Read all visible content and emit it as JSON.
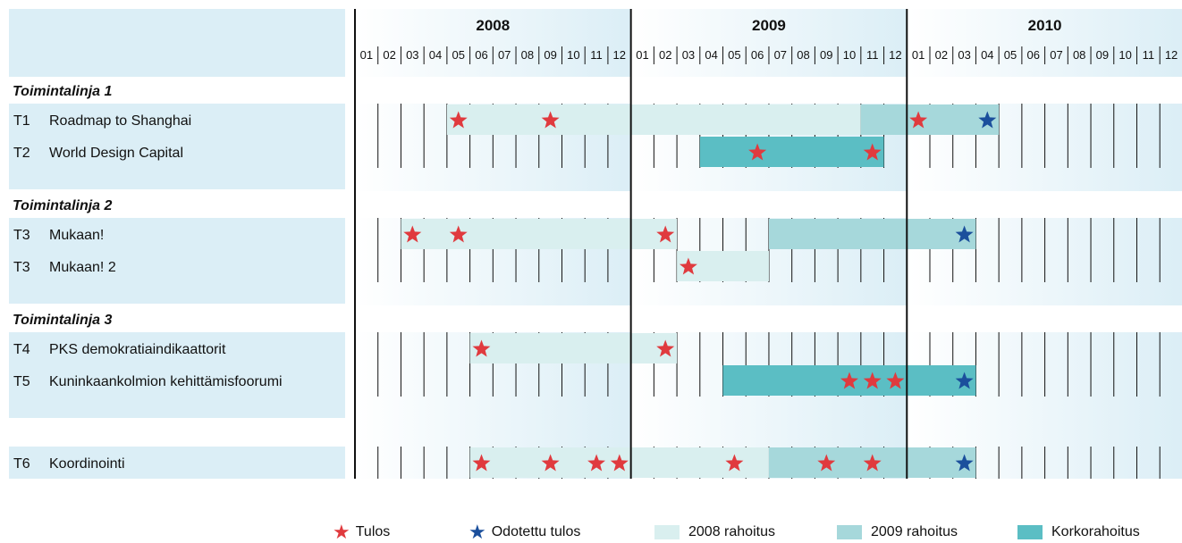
{
  "chart_data": {
    "type": "gantt",
    "years": [
      "2008",
      "2009",
      "2010"
    ],
    "months": [
      "01",
      "02",
      "03",
      "04",
      "05",
      "06",
      "07",
      "08",
      "09",
      "10",
      "11",
      "12"
    ],
    "colors": {
      "funding_2008": "#d9efef",
      "funding_2009": "#a6d8db",
      "high_funding": "#5bbec4",
      "result_star": "#e03a3e",
      "expected_star": "#1b4f9c",
      "label_band": "#dbeef6",
      "grid": "#111111"
    },
    "groups": [
      {
        "title": "Toimintalinja 1",
        "tasks": [
          {
            "code": "T1",
            "name": "Roadmap to Shanghai",
            "bars": [
              {
                "start": "2008-05",
                "end": "2009-10",
                "funding": "2008"
              },
              {
                "start": "2009-11",
                "end": "2010-04",
                "funding": "2009"
              }
            ],
            "results": [
              "2008-05",
              "2008-09",
              "2010-01"
            ],
            "expected": [
              "2010-04"
            ]
          },
          {
            "code": "T2",
            "name": "World Design Capital",
            "bars": [
              {
                "start": "2009-04",
                "end": "2009-11",
                "funding": "high"
              }
            ],
            "results": [
              "2009-06",
              "2009-11"
            ],
            "expected": []
          }
        ]
      },
      {
        "title": "Toimintalinja 2",
        "tasks": [
          {
            "code": "T3",
            "name": "Mukaan!",
            "bars": [
              {
                "start": "2008-03",
                "end": "2009-02",
                "funding": "2008"
              },
              {
                "start": "2009-07",
                "end": "2010-03",
                "funding": "2009"
              }
            ],
            "results": [
              "2008-03",
              "2008-05",
              "2009-02"
            ],
            "expected": [
              "2010-03"
            ]
          },
          {
            "code": "T3",
            "name": "Mukaan! 2",
            "bars": [
              {
                "start": "2009-03",
                "end": "2009-06",
                "funding": "2008"
              }
            ],
            "results": [
              "2009-03"
            ],
            "expected": []
          }
        ]
      },
      {
        "title": "Toimintalinja 3",
        "tasks": [
          {
            "code": "T4",
            "name": "PKS demokratiaindikaattorit",
            "bars": [
              {
                "start": "2008-06",
                "end": "2009-02",
                "funding": "2008"
              }
            ],
            "results": [
              "2008-06",
              "2009-02"
            ],
            "expected": []
          },
          {
            "code": "T5",
            "name": "Kuninkaankolmion kehittämisfoorumi",
            "bars": [
              {
                "start": "2009-05",
                "end": "2010-03",
                "funding": "high"
              }
            ],
            "results": [
              "2009-10",
              "2009-11",
              "2009-12"
            ],
            "expected": [
              "2010-03"
            ]
          }
        ]
      },
      {
        "title": "",
        "tasks": [
          {
            "code": "T6",
            "name": "Koordinointi",
            "bars": [
              {
                "start": "2008-06",
                "end": "2009-06",
                "funding": "2008"
              },
              {
                "start": "2009-07",
                "end": "2010-03",
                "funding": "2009"
              }
            ],
            "results": [
              "2008-06",
              "2008-09",
              "2008-11",
              "2008-12",
              "2009-05",
              "2009-09",
              "2009-11"
            ],
            "expected": [
              "2010-03"
            ]
          }
        ]
      }
    ],
    "legend": [
      {
        "label": "Tulos",
        "kind": "result"
      },
      {
        "label": "Odotettu tulos",
        "kind": "expected"
      },
      {
        "label": "2008 rahoitus",
        "kind": "funding_2008"
      },
      {
        "label": "2009 rahoitus",
        "kind": "funding_2009"
      },
      {
        "label": "Korkorahoitus",
        "kind": "high_funding"
      }
    ],
    "legend_position": "bottom"
  }
}
